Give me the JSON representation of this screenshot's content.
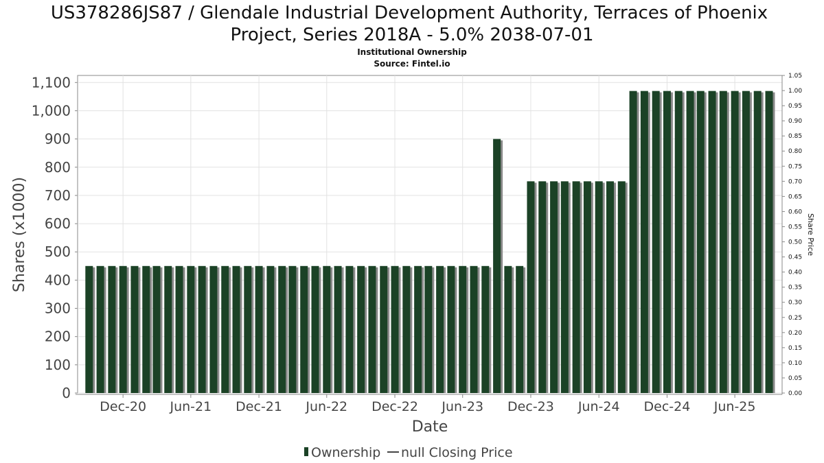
{
  "chart_data": {
    "type": "bar",
    "title": "US378286JS87 / Glendale Industrial Development Authority, Terraces of Phoenix Project, Series 2018A - 5.0% 2038-07-01",
    "title_lines": [
      "US378286JS87 / Glendale Industrial Development Authority, Terraces of Phoenix",
      "Project, Series 2018A - 5.0% 2038-07-01"
    ],
    "subtitle_lines": [
      "Institutional Ownership",
      "Source: Fintel.io"
    ],
    "xlabel": "Date",
    "ylabel": "Shares (x1000)",
    "y2label": "Share Price",
    "ylim": [
      0,
      1125
    ],
    "y2lim": [
      0,
      1.05
    ],
    "xlim": [
      "2020-08-01",
      "2025-10-06"
    ],
    "yticks": [
      0,
      100,
      200,
      300,
      400,
      500,
      600,
      700,
      800,
      900,
      1000,
      1100
    ],
    "ytick_labels": [
      "0",
      "100",
      "200",
      "300",
      "400",
      "500",
      "600",
      "700",
      "800",
      "900",
      "1,000",
      "1,100"
    ],
    "y2ticks": [
      0,
      0.05,
      0.1,
      0.15,
      0.2,
      0.25,
      0.3,
      0.35,
      0.4,
      0.45,
      0.5,
      0.55,
      0.6,
      0.65,
      0.7,
      0.75,
      0.8,
      0.85,
      0.9,
      0.95,
      1.0,
      1.05
    ],
    "y2tick_labels": [
      "0.00",
      "0.05",
      "0.10",
      "0.15",
      "0.20",
      "0.25",
      "0.30",
      "0.35",
      "0.40",
      "0.45",
      "0.50",
      "0.55",
      "0.60",
      "0.65",
      "0.70",
      "0.75",
      "0.80",
      "0.85",
      "0.90",
      "0.95",
      "1.00",
      "1.05"
    ],
    "xticks": [
      {
        "label": "Dec-20",
        "date": "2020-12-01"
      },
      {
        "label": "Jun-21",
        "date": "2021-06-01"
      },
      {
        "label": "Dec-21",
        "date": "2021-12-01"
      },
      {
        "label": "Jun-22",
        "date": "2022-06-01"
      },
      {
        "label": "Dec-22",
        "date": "2022-12-01"
      },
      {
        "label": "Jun-23",
        "date": "2023-06-01"
      },
      {
        "label": "Dec-23",
        "date": "2023-12-01"
      },
      {
        "label": "Jun-24",
        "date": "2024-06-01"
      },
      {
        "label": "Dec-24",
        "date": "2024-12-01"
      },
      {
        "label": "Jun-25",
        "date": "2025-06-01"
      }
    ],
    "grid": true,
    "legend_position": "bottom",
    "series": [
      {
        "name": "Ownership",
        "color": "#1b4226",
        "shadow_color": "#8a8a8a",
        "points": [
          {
            "x": "2020-09-01",
            "y": 450
          },
          {
            "x": "2020-10-01",
            "y": 450
          },
          {
            "x": "2020-11-01",
            "y": 450
          },
          {
            "x": "2020-12-01",
            "y": 450
          },
          {
            "x": "2021-01-01",
            "y": 450
          },
          {
            "x": "2021-02-01",
            "y": 450
          },
          {
            "x": "2021-03-01",
            "y": 450
          },
          {
            "x": "2021-04-01",
            "y": 450
          },
          {
            "x": "2021-05-01",
            "y": 450
          },
          {
            "x": "2021-06-01",
            "y": 450
          },
          {
            "x": "2021-07-01",
            "y": 450
          },
          {
            "x": "2021-08-01",
            "y": 450
          },
          {
            "x": "2021-09-01",
            "y": 450
          },
          {
            "x": "2021-10-01",
            "y": 450
          },
          {
            "x": "2021-11-01",
            "y": 450
          },
          {
            "x": "2021-12-01",
            "y": 450
          },
          {
            "x": "2022-01-01",
            "y": 450
          },
          {
            "x": "2022-02-01",
            "y": 450
          },
          {
            "x": "2022-03-01",
            "y": 450
          },
          {
            "x": "2022-04-01",
            "y": 450
          },
          {
            "x": "2022-05-01",
            "y": 450
          },
          {
            "x": "2022-06-01",
            "y": 450
          },
          {
            "x": "2022-07-01",
            "y": 450
          },
          {
            "x": "2022-08-01",
            "y": 450
          },
          {
            "x": "2022-09-01",
            "y": 450
          },
          {
            "x": "2022-10-01",
            "y": 450
          },
          {
            "x": "2022-11-01",
            "y": 450
          },
          {
            "x": "2022-12-01",
            "y": 450
          },
          {
            "x": "2023-01-01",
            "y": 450
          },
          {
            "x": "2023-02-01",
            "y": 450
          },
          {
            "x": "2023-03-01",
            "y": 450
          },
          {
            "x": "2023-04-01",
            "y": 450
          },
          {
            "x": "2023-05-01",
            "y": 450
          },
          {
            "x": "2023-06-01",
            "y": 450
          },
          {
            "x": "2023-07-01",
            "y": 450
          },
          {
            "x": "2023-08-01",
            "y": 450
          },
          {
            "x": "2023-09-01",
            "y": 900
          },
          {
            "x": "2023-10-01",
            "y": 450
          },
          {
            "x": "2023-11-01",
            "y": 450
          },
          {
            "x": "2023-12-01",
            "y": 750
          },
          {
            "x": "2024-01-01",
            "y": 750
          },
          {
            "x": "2024-02-01",
            "y": 750
          },
          {
            "x": "2024-03-01",
            "y": 750
          },
          {
            "x": "2024-04-01",
            "y": 750
          },
          {
            "x": "2024-05-01",
            "y": 750
          },
          {
            "x": "2024-06-01",
            "y": 750
          },
          {
            "x": "2024-07-01",
            "y": 750
          },
          {
            "x": "2024-08-01",
            "y": 750
          },
          {
            "x": "2024-09-01",
            "y": 1070
          },
          {
            "x": "2024-10-01",
            "y": 1070
          },
          {
            "x": "2024-11-01",
            "y": 1070
          },
          {
            "x": "2024-12-01",
            "y": 1070
          },
          {
            "x": "2025-01-01",
            "y": 1070
          },
          {
            "x": "2025-02-01",
            "y": 1070
          },
          {
            "x": "2025-03-01",
            "y": 1070
          },
          {
            "x": "2025-04-01",
            "y": 1070
          },
          {
            "x": "2025-05-01",
            "y": 1070
          },
          {
            "x": "2025-06-01",
            "y": 1070
          },
          {
            "x": "2025-07-01",
            "y": 1070
          },
          {
            "x": "2025-08-01",
            "y": 1070
          },
          {
            "x": "2025-09-01",
            "y": 1070
          }
        ]
      },
      {
        "name": "null Closing Price",
        "color": "#444444",
        "points": []
      }
    ]
  }
}
